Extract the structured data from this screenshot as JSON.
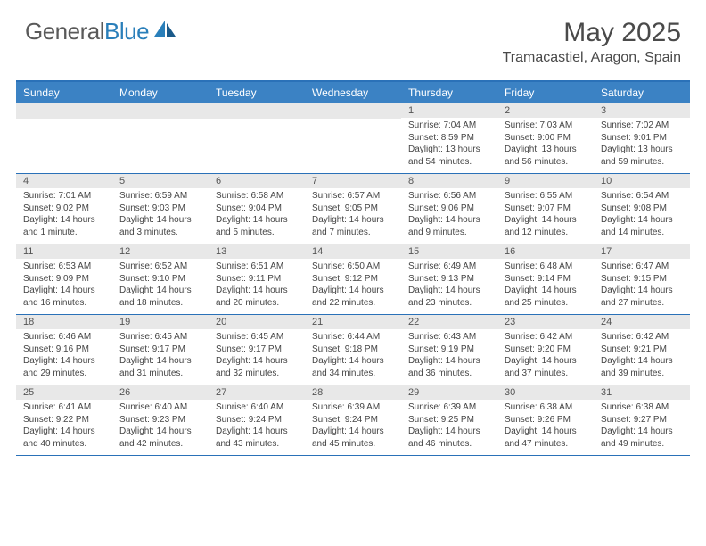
{
  "brand": {
    "part1": "General",
    "part2": "Blue"
  },
  "title": "May 2025",
  "location": "Tramacastiel, Aragon, Spain",
  "colors": {
    "header_bg": "#3b82c4",
    "border": "#2a71b8",
    "daynum_bg": "#e8e8e8",
    "text": "#444444"
  },
  "day_names": [
    "Sunday",
    "Monday",
    "Tuesday",
    "Wednesday",
    "Thursday",
    "Friday",
    "Saturday"
  ],
  "weeks": [
    [
      null,
      null,
      null,
      null,
      {
        "n": "1",
        "sr": "7:04 AM",
        "ss": "8:59 PM",
        "dl": "13 hours and 54 minutes."
      },
      {
        "n": "2",
        "sr": "7:03 AM",
        "ss": "9:00 PM",
        "dl": "13 hours and 56 minutes."
      },
      {
        "n": "3",
        "sr": "7:02 AM",
        "ss": "9:01 PM",
        "dl": "13 hours and 59 minutes."
      }
    ],
    [
      {
        "n": "4",
        "sr": "7:01 AM",
        "ss": "9:02 PM",
        "dl": "14 hours and 1 minute."
      },
      {
        "n": "5",
        "sr": "6:59 AM",
        "ss": "9:03 PM",
        "dl": "14 hours and 3 minutes."
      },
      {
        "n": "6",
        "sr": "6:58 AM",
        "ss": "9:04 PM",
        "dl": "14 hours and 5 minutes."
      },
      {
        "n": "7",
        "sr": "6:57 AM",
        "ss": "9:05 PM",
        "dl": "14 hours and 7 minutes."
      },
      {
        "n": "8",
        "sr": "6:56 AM",
        "ss": "9:06 PM",
        "dl": "14 hours and 9 minutes."
      },
      {
        "n": "9",
        "sr": "6:55 AM",
        "ss": "9:07 PM",
        "dl": "14 hours and 12 minutes."
      },
      {
        "n": "10",
        "sr": "6:54 AM",
        "ss": "9:08 PM",
        "dl": "14 hours and 14 minutes."
      }
    ],
    [
      {
        "n": "11",
        "sr": "6:53 AM",
        "ss": "9:09 PM",
        "dl": "14 hours and 16 minutes."
      },
      {
        "n": "12",
        "sr": "6:52 AM",
        "ss": "9:10 PM",
        "dl": "14 hours and 18 minutes."
      },
      {
        "n": "13",
        "sr": "6:51 AM",
        "ss": "9:11 PM",
        "dl": "14 hours and 20 minutes."
      },
      {
        "n": "14",
        "sr": "6:50 AM",
        "ss": "9:12 PM",
        "dl": "14 hours and 22 minutes."
      },
      {
        "n": "15",
        "sr": "6:49 AM",
        "ss": "9:13 PM",
        "dl": "14 hours and 23 minutes."
      },
      {
        "n": "16",
        "sr": "6:48 AM",
        "ss": "9:14 PM",
        "dl": "14 hours and 25 minutes."
      },
      {
        "n": "17",
        "sr": "6:47 AM",
        "ss": "9:15 PM",
        "dl": "14 hours and 27 minutes."
      }
    ],
    [
      {
        "n": "18",
        "sr": "6:46 AM",
        "ss": "9:16 PM",
        "dl": "14 hours and 29 minutes."
      },
      {
        "n": "19",
        "sr": "6:45 AM",
        "ss": "9:17 PM",
        "dl": "14 hours and 31 minutes."
      },
      {
        "n": "20",
        "sr": "6:45 AM",
        "ss": "9:17 PM",
        "dl": "14 hours and 32 minutes."
      },
      {
        "n": "21",
        "sr": "6:44 AM",
        "ss": "9:18 PM",
        "dl": "14 hours and 34 minutes."
      },
      {
        "n": "22",
        "sr": "6:43 AM",
        "ss": "9:19 PM",
        "dl": "14 hours and 36 minutes."
      },
      {
        "n": "23",
        "sr": "6:42 AM",
        "ss": "9:20 PM",
        "dl": "14 hours and 37 minutes."
      },
      {
        "n": "24",
        "sr": "6:42 AM",
        "ss": "9:21 PM",
        "dl": "14 hours and 39 minutes."
      }
    ],
    [
      {
        "n": "25",
        "sr": "6:41 AM",
        "ss": "9:22 PM",
        "dl": "14 hours and 40 minutes."
      },
      {
        "n": "26",
        "sr": "6:40 AM",
        "ss": "9:23 PM",
        "dl": "14 hours and 42 minutes."
      },
      {
        "n": "27",
        "sr": "6:40 AM",
        "ss": "9:24 PM",
        "dl": "14 hours and 43 minutes."
      },
      {
        "n": "28",
        "sr": "6:39 AM",
        "ss": "9:24 PM",
        "dl": "14 hours and 45 minutes."
      },
      {
        "n": "29",
        "sr": "6:39 AM",
        "ss": "9:25 PM",
        "dl": "14 hours and 46 minutes."
      },
      {
        "n": "30",
        "sr": "6:38 AM",
        "ss": "9:26 PM",
        "dl": "14 hours and 47 minutes."
      },
      {
        "n": "31",
        "sr": "6:38 AM",
        "ss": "9:27 PM",
        "dl": "14 hours and 49 minutes."
      }
    ]
  ],
  "labels": {
    "sunrise": "Sunrise:",
    "sunset": "Sunset:",
    "daylight": "Daylight:"
  }
}
